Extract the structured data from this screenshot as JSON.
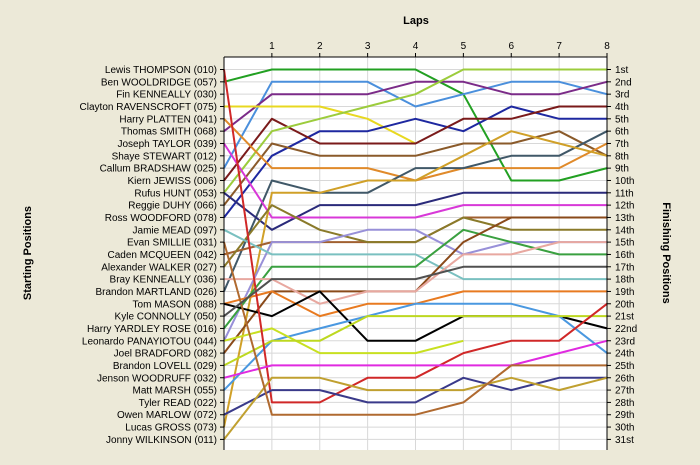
{
  "chart_data": {
    "type": "line",
    "title": "Laps",
    "ylabel_left": "Starting Positions",
    "ylabel_right": "Finishing Positions",
    "x": [
      0,
      1,
      2,
      3,
      4,
      5,
      6,
      7,
      8
    ],
    "x_tick_labels": [
      "1",
      "2",
      "3",
      "4",
      "5",
      "6",
      "7",
      "8"
    ],
    "ylim": [
      1,
      31
    ],
    "y_inverted": true,
    "grid": true,
    "starting_labels": [
      "Lewis THOMPSON (010)",
      "Ben WOOLDRIDGE (057)",
      "Fin KENNEALLY (030)",
      "Clayton RAVENSCROFT (075)",
      "Harry PLATTEN (041)",
      "Thomas SMITH (068)",
      "Joseph TAYLOR (039)",
      "Shaye STEWART (012)",
      "Callum BRADSHAW (025)",
      "Kiern JEWISS (006)",
      "Rufus HUNT (053)",
      "Reggie DUHY (066)",
      "Ross WOODFORD (078)",
      "Jamie MEAD (097)",
      "Evan SMILLIE (031)",
      "Caden MCQUEEN (042)",
      "Alexander WALKER (027)",
      "Bray KENNEALLY (036)",
      "Brandon MARTLAND (026)",
      "Tom MASON (088)",
      "Kyle CONNOLLY (050)",
      "Harry YARDLEY ROSE (016)",
      "Leonardo PANAYIOTOU (044)",
      "Joel BRADFORD (082)",
      "Brandon LOVELL (029)",
      "Jenson WOODRUFF (032)",
      "Matt MARSH (055)",
      "Tyler READ (022)",
      "Owen MARLOW (072)",
      "Lucas GROSS (073)",
      "Jonny WILKINSON (011)"
    ],
    "finishing_labels": [
      "1st",
      "2nd",
      "3rd",
      "4th",
      "5th",
      "6th",
      "7th",
      "8th",
      "9th",
      "10th",
      "11th",
      "12th",
      "13th",
      "14th",
      "15th",
      "16th",
      "17th",
      "18th",
      "19th",
      "20th",
      "21st",
      "22nd",
      "23rd",
      "24th",
      "25th",
      "26th",
      "27th",
      "28th",
      "29th",
      "30th",
      "31st"
    ],
    "series": [
      {
        "color": "#22a022",
        "values": [
          2,
          1,
          1,
          1,
          1,
          3,
          10,
          10,
          9
        ]
      },
      {
        "color": "#4a8fdc",
        "values": [
          9,
          2,
          2,
          2,
          4,
          3,
          2,
          2,
          3
        ]
      },
      {
        "color": "#7b2b88",
        "values": [
          6,
          3,
          3,
          3,
          2,
          2,
          3,
          3,
          2
        ]
      },
      {
        "color": "#e8d820",
        "values": [
          4,
          4,
          4,
          5,
          7,
          null,
          null,
          null,
          null
        ]
      },
      {
        "color": "#1e28a0",
        "values": [
          13,
          8,
          6,
          6,
          5,
          6,
          4,
          5,
          5
        ]
      },
      {
        "color": "#7a1a1a",
        "values": [
          10,
          5,
          7,
          7,
          7,
          5,
          5,
          4,
          4
        ]
      },
      {
        "color": "#9ccc3c",
        "values": [
          11,
          6,
          5,
          4,
          3,
          1,
          1,
          1,
          1
        ]
      },
      {
        "color": "#8a5a2a",
        "values": [
          12,
          7,
          8,
          8,
          8,
          7,
          7,
          6,
          8
        ]
      },
      {
        "color": "#e08a2a",
        "values": [
          5,
          9,
          9,
          9,
          10,
          9,
          9,
          9,
          7
        ]
      },
      {
        "color": "#405868",
        "values": [
          19,
          10,
          11,
          11,
          9,
          9,
          8,
          8,
          6
        ]
      },
      {
        "color": "#2a2a7a",
        "values": [
          11,
          14,
          12,
          12,
          12,
          11,
          11,
          11,
          11
        ]
      },
      {
        "color": "#d838d8",
        "values": [
          7,
          13,
          13,
          13,
          13,
          12,
          12,
          12,
          12
        ]
      },
      {
        "color": "#d0a028",
        "values": [
          30,
          11,
          11,
          10,
          10,
          8,
          6,
          7,
          8
        ]
      },
      {
        "color": "#a06030",
        "values": [
          16,
          15,
          15,
          15,
          15,
          13,
          13,
          13,
          13
        ]
      },
      {
        "color": "#8a7a2a",
        "values": [
          17,
          12,
          14,
          15,
          15,
          13,
          14,
          14,
          14
        ]
      },
      {
        "color": "#9890d8",
        "values": [
          23,
          15,
          15,
          14,
          14,
          16,
          15,
          15,
          15
        ]
      },
      {
        "color": "#7ac0c0",
        "values": [
          14,
          16,
          16,
          16,
          16,
          18,
          18,
          18,
          18
        ]
      },
      {
        "color": "#3aa040",
        "values": [
          22,
          17,
          17,
          17,
          17,
          14,
          15,
          16,
          16
        ]
      },
      {
        "color": "#8a4a1a",
        "values": [
          24,
          19,
          19,
          19,
          19,
          15,
          13,
          13,
          13
        ]
      },
      {
        "color": "#e8a8a0",
        "values": [
          18,
          18,
          20,
          19,
          19,
          16,
          16,
          15,
          15
        ]
      },
      {
        "color": "#e87a20",
        "values": [
          20,
          19,
          21,
          20,
          20,
          19,
          19,
          19,
          19
        ]
      },
      {
        "color": "#000000",
        "values": [
          20,
          21,
          19,
          23,
          23,
          21,
          21,
          21,
          22
        ]
      },
      {
        "color": "#4a98e0",
        "values": [
          27,
          23,
          22,
          21,
          20,
          20,
          20,
          21,
          24
        ]
      },
      {
        "color": "#c8e020",
        "values": [
          23,
          22,
          24,
          24,
          24,
          23,
          null,
          null,
          null
        ]
      },
      {
        "color": "#bdd820",
        "values": [
          25,
          23,
          23,
          21,
          21,
          21,
          21,
          21,
          21
        ]
      },
      {
        "color": "#d02828",
        "values": [
          1,
          28,
          28,
          26,
          26,
          24,
          23,
          23,
          20
        ]
      },
      {
        "color": "#e02ae0",
        "values": [
          26,
          25,
          25,
          25,
          25,
          25,
          25,
          24,
          23
        ]
      },
      {
        "color": "#3a3a8a",
        "values": [
          29,
          27,
          27,
          28,
          28,
          26,
          27,
          26,
          26
        ]
      },
      {
        "color": "#c0a030",
        "values": [
          31,
          26,
          26,
          27,
          27,
          27,
          26,
          27,
          26
        ]
      },
      {
        "color": "#b06a30",
        "values": [
          15,
          29,
          29,
          29,
          29,
          28,
          25,
          25,
          25
        ]
      },
      {
        "color": "#505050",
        "values": [
          21,
          18,
          18,
          18,
          18,
          17,
          17,
          17,
          17
        ]
      }
    ]
  }
}
